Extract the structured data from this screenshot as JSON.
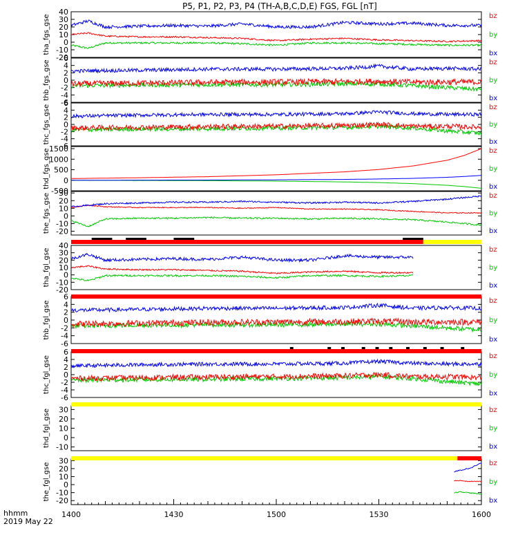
{
  "title": "P5, P1, P2, P3, P4 (TH-A,B,C,D,E) FGS, FGL [nT]",
  "x_axis": {
    "ticks": [
      "1400",
      "1430",
      "1500",
      "1530",
      "1600"
    ],
    "label_line1": "hhmm",
    "label_line2": "2019 May 22"
  },
  "colors": {
    "bx": "#0000ff",
    "by": "#00c800",
    "bz": "#ff0000",
    "red_bar": "#ff0000",
    "yellow_bar": "#ffff00",
    "black": "#000000"
  },
  "legend": [
    "bz",
    "by",
    "bx"
  ],
  "chart_data": [
    {
      "type": "line",
      "ylabel": "tha_fgs_gse",
      "yticks": [
        "40",
        "30",
        "20",
        "10",
        "0",
        "-10",
        "-20"
      ],
      "ylim": [
        -20,
        40
      ],
      "x_minutes": [
        0,
        5,
        10,
        20,
        30,
        40,
        50,
        60,
        70,
        80,
        90,
        100,
        110,
        120
      ],
      "series": [
        {
          "name": "bx",
          "values": [
            22,
            28,
            20,
            21,
            22,
            21,
            24,
            20,
            20,
            26,
            24,
            25,
            22,
            22
          ],
          "noise": 2.0
        },
        {
          "name": "by",
          "values": [
            -4,
            -8,
            -1,
            -1,
            -1,
            -1,
            -2,
            -4,
            -1,
            -1,
            -2,
            -3,
            -4,
            -4
          ],
          "noise": 1.2
        },
        {
          "name": "bz",
          "values": [
            10,
            12,
            8,
            7,
            7,
            6,
            5,
            2,
            4,
            5,
            3,
            2,
            1,
            2
          ],
          "noise": 1.0
        }
      ]
    },
    {
      "type": "line",
      "ylabel": "thb_fgs_gse",
      "yticks": [
        "6",
        "4",
        "2",
        "0",
        "-2",
        "-4",
        "-6"
      ],
      "ylim": [
        -6,
        6
      ],
      "x_minutes": [
        0,
        20,
        40,
        60,
        80,
        90,
        100,
        110,
        120
      ],
      "series": [
        {
          "name": "bx",
          "values": [
            2.5,
            2.7,
            3.0,
            3.0,
            3.2,
            3.8,
            3.0,
            3.2,
            3.0
          ],
          "noise": 0.5
        },
        {
          "name": "by",
          "values": [
            -1.5,
            -1.3,
            -1.2,
            -1.2,
            -1.0,
            -1.0,
            -1.5,
            -2.0,
            -2.5
          ],
          "noise": 0.6
        },
        {
          "name": "bz",
          "values": [
            -1.0,
            -0.8,
            -0.6,
            -0.5,
            -0.4,
            -0.3,
            -0.5,
            -0.5,
            -0.5
          ],
          "noise": 0.8
        }
      ]
    },
    {
      "type": "line",
      "ylabel": "thc_fgs_gse",
      "yticks": [
        "6",
        "4",
        "2",
        "0",
        "-2",
        "-4",
        "-6"
      ],
      "ylim": [
        -6,
        6
      ],
      "x_minutes": [
        0,
        20,
        40,
        60,
        80,
        90,
        100,
        110,
        120
      ],
      "series": [
        {
          "name": "bx",
          "values": [
            2.3,
            2.6,
            2.8,
            2.8,
            3.0,
            3.5,
            3.0,
            2.8,
            2.8
          ],
          "noise": 0.5
        },
        {
          "name": "by",
          "values": [
            -1.5,
            -1.3,
            -1.2,
            -1.0,
            -0.8,
            -0.5,
            -1.0,
            -1.8,
            -2.5
          ],
          "noise": 0.6
        },
        {
          "name": "bz",
          "values": [
            -1.0,
            -0.8,
            -0.6,
            -0.5,
            -0.3,
            0.0,
            -0.5,
            -0.5,
            -0.8
          ],
          "noise": 0.7
        }
      ]
    },
    {
      "type": "line",
      "ylabel": "thd_fgs_gse",
      "yticks": [
        "1500",
        "1000",
        "500",
        "0",
        "-500"
      ],
      "ylim": [
        -500,
        1600
      ],
      "x_minutes": [
        0,
        20,
        40,
        60,
        80,
        90,
        100,
        110,
        115,
        120
      ],
      "series": [
        {
          "name": "bx",
          "values": [
            0,
            5,
            10,
            20,
            40,
            60,
            90,
            140,
            180,
            230
          ],
          "noise": 0
        },
        {
          "name": "by",
          "values": [
            -5,
            -10,
            -20,
            -40,
            -80,
            -110,
            -160,
            -240,
            -300,
            -380
          ],
          "noise": 0
        },
        {
          "name": "bz",
          "values": [
            80,
            120,
            170,
            260,
            400,
            510,
            680,
            950,
            1180,
            1500
          ],
          "noise": 0
        }
      ]
    },
    {
      "type": "line",
      "ylabel": "the_fgs_gse",
      "yticks": [
        "30",
        "20",
        "10",
        "0",
        "-10",
        "-20"
      ],
      "ylim": [
        -25,
        32
      ],
      "x_minutes": [
        0,
        5,
        10,
        20,
        30,
        40,
        50,
        60,
        70,
        80,
        90,
        100,
        110,
        120
      ],
      "series": [
        {
          "name": "bx",
          "values": [
            12,
            14,
            16,
            17,
            18,
            18,
            19,
            18,
            17,
            18,
            17,
            19,
            22,
            26
          ],
          "noise": 1.0
        },
        {
          "name": "by",
          "values": [
            -6,
            -14,
            -4,
            -3,
            -3,
            -2,
            -3,
            -3,
            -4,
            -3,
            -4,
            -5,
            -8,
            -12
          ],
          "noise": 1.0
        },
        {
          "name": "bz",
          "values": [
            11,
            14,
            12,
            11,
            11,
            11,
            10,
            11,
            9,
            9,
            8,
            6,
            4,
            4
          ],
          "noise": 0.6
        }
      ]
    },
    {
      "type": "line",
      "ylabel": "tha_fgl_gse",
      "yticks": [
        "40",
        "30",
        "20",
        "10",
        "0",
        "-10",
        "-20"
      ],
      "ylim": [
        -20,
        40
      ],
      "x_minutes": [
        0,
        5,
        10,
        20,
        30,
        40,
        50,
        60,
        70,
        80,
        90,
        100
      ],
      "series": [
        {
          "name": "bx",
          "values": [
            22,
            28,
            20,
            21,
            22,
            21,
            24,
            20,
            20,
            26,
            24,
            24
          ],
          "noise": 2.0
        },
        {
          "name": "by",
          "values": [
            -4,
            -8,
            -1,
            -1,
            -1,
            -1,
            -2,
            -4,
            -1,
            -1,
            -2,
            -1
          ],
          "noise": 1.2
        },
        {
          "name": "bz",
          "values": [
            10,
            12,
            8,
            7,
            7,
            6,
            5,
            2,
            4,
            5,
            3,
            3
          ],
          "noise": 1.0
        }
      ]
    },
    {
      "type": "line",
      "ylabel": "thb_fgl_gse",
      "yticks": [
        "6",
        "4",
        "2",
        "0",
        "-2",
        "-4",
        "-6"
      ],
      "ylim": [
        -6,
        6
      ],
      "x_minutes": [
        0,
        20,
        40,
        60,
        80,
        90,
        100,
        110,
        120
      ],
      "series": [
        {
          "name": "bx",
          "values": [
            2.5,
            2.7,
            3.0,
            3.0,
            3.2,
            3.8,
            3.0,
            3.2,
            3.0
          ],
          "noise": 0.5
        },
        {
          "name": "by",
          "values": [
            -1.5,
            -1.3,
            -1.2,
            -1.2,
            -1.0,
            -1.0,
            -1.5,
            -2.0,
            -2.5
          ],
          "noise": 0.6
        },
        {
          "name": "bz",
          "values": [
            -1.0,
            -0.8,
            -0.6,
            -0.5,
            -0.4,
            -0.3,
            -0.5,
            -0.5,
            -0.5
          ],
          "noise": 0.8
        }
      ]
    },
    {
      "type": "line",
      "ylabel": "thc_fgl_gse",
      "yticks": [
        "6",
        "4",
        "2",
        "0",
        "-2",
        "-4",
        "-6"
      ],
      "ylim": [
        -6,
        6
      ],
      "x_minutes": [
        0,
        20,
        40,
        60,
        80,
        90,
        100,
        110,
        120
      ],
      "series": [
        {
          "name": "bx",
          "values": [
            2.3,
            2.6,
            2.8,
            2.8,
            3.0,
            3.5,
            3.0,
            2.8,
            2.8
          ],
          "noise": 0.5
        },
        {
          "name": "by",
          "values": [
            -1.5,
            -1.3,
            -1.2,
            -1.0,
            -0.8,
            -0.5,
            -1.0,
            -1.8,
            -2.5
          ],
          "noise": 0.6
        },
        {
          "name": "bz",
          "values": [
            -1.0,
            -0.8,
            -0.6,
            -0.5,
            -0.3,
            0.0,
            -0.5,
            -0.5,
            -0.8
          ],
          "noise": 0.7
        }
      ]
    },
    {
      "type": "line",
      "ylabel": "thd_fgl_gse",
      "yticks": [
        "30",
        "20",
        "10",
        "0",
        "-10"
      ],
      "ylim": [
        -14,
        34
      ],
      "x_minutes": [],
      "series": []
    },
    {
      "type": "line",
      "ylabel": "the_fgl_gse",
      "yticks": [
        "30",
        "20",
        "10",
        "0",
        "-10",
        "-20"
      ],
      "ylim": [
        -25,
        32
      ],
      "x_minutes": [
        112,
        114,
        116,
        118,
        120
      ],
      "series": [
        {
          "name": "bx",
          "values": [
            16,
            18,
            20,
            23,
            27
          ],
          "noise": 0.8
        },
        {
          "name": "by",
          "values": [
            -10,
            -9,
            -10,
            -11,
            -12
          ],
          "noise": 0.6
        },
        {
          "name": "bz",
          "values": [
            5,
            5,
            4,
            4,
            4
          ],
          "noise": 0.4
        }
      ]
    }
  ],
  "mode_bars": [
    {
      "after_panel": 4,
      "segments": [
        {
          "from": 0,
          "to": 103,
          "color": "red"
        },
        {
          "from": 103,
          "to": 120,
          "color": "yellow"
        }
      ],
      "black_marks": [
        [
          6,
          12
        ],
        [
          16,
          22
        ],
        [
          30,
          36
        ],
        [
          97,
          103
        ]
      ]
    },
    {
      "after_panel": 5,
      "segments": [
        {
          "from": 0,
          "to": 120,
          "color": "red"
        }
      ],
      "black_marks": []
    },
    {
      "after_panel": 6,
      "segments": [
        {
          "from": 0,
          "to": 120,
          "color": "red"
        }
      ],
      "black_marks": [
        [
          64,
          65
        ],
        [
          75,
          76
        ],
        [
          79,
          80
        ],
        [
          85,
          86
        ],
        [
          89,
          90
        ],
        [
          93,
          94
        ],
        [
          98,
          99
        ],
        [
          103,
          104
        ],
        [
          108,
          109
        ],
        [
          114,
          115
        ]
      ]
    },
    {
      "after_panel": 7,
      "segments": [
        {
          "from": 0,
          "to": 120,
          "color": "yellow"
        }
      ],
      "black_marks": []
    },
    {
      "after_panel": 8,
      "segments": [
        {
          "from": 0,
          "to": 113,
          "color": "yellow"
        },
        {
          "from": 113,
          "to": 120,
          "color": "red"
        }
      ],
      "black_marks": []
    }
  ]
}
